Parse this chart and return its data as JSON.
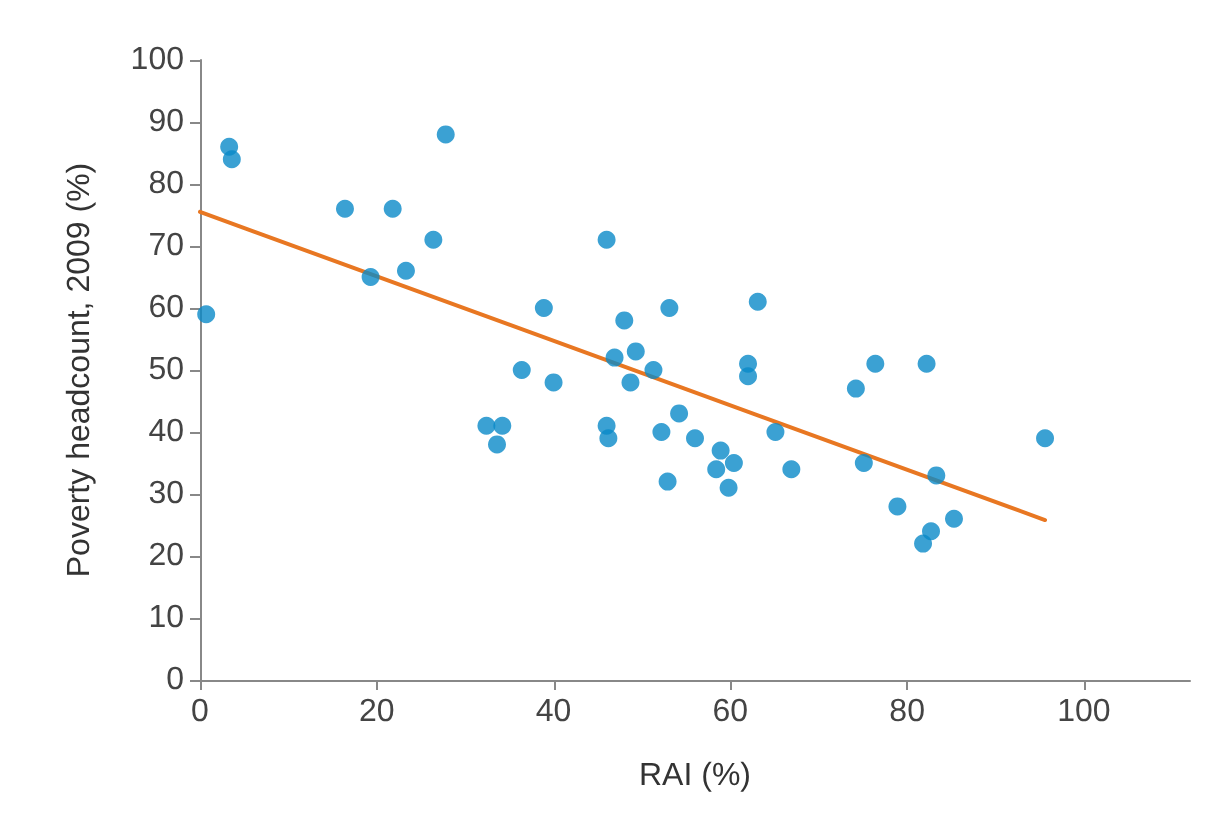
{
  "chart_data": {
    "type": "scatter",
    "xlabel": "RAI (%)",
    "ylabel": "Poverty headcount, 2009 (%)",
    "xlim": [
      0,
      112
    ],
    "xticks": [
      0,
      20,
      40,
      60,
      80,
      100
    ],
    "ylim": [
      0,
      100
    ],
    "yticks": [
      0,
      10,
      20,
      30,
      40,
      50,
      60,
      70,
      80,
      90,
      100
    ],
    "grid": false,
    "marker": "circle",
    "series": [
      {
        "color": "#0a8ac8",
        "x": [
          0.7,
          3.3,
          3.6,
          16.4,
          19.3,
          21.8,
          23.3,
          26.4,
          27.8,
          32.4,
          34.2,
          33.6,
          36.4,
          38.9,
          40,
          46,
          46,
          46.2,
          46.9,
          48,
          48.7,
          49.3,
          51.3,
          52.2,
          53.1,
          52.9,
          54.2,
          56,
          58.4,
          58.9,
          59.8,
          60.4,
          62,
          62,
          63.1,
          65.1,
          66.9,
          74.2,
          75.1,
          76.4,
          78.9,
          81.8,
          82.2,
          82.7,
          83.3,
          85.3,
          95.6
        ],
        "values": [
          59,
          86,
          84,
          76,
          65,
          76,
          66,
          71,
          88,
          41,
          41,
          38,
          50,
          60,
          48,
          71,
          41,
          39,
          52,
          58,
          48,
          53,
          50,
          40,
          60,
          32,
          43,
          39,
          34,
          37,
          31,
          35,
          51,
          49,
          61,
          40,
          34,
          47,
          35,
          51,
          28,
          22,
          51,
          24,
          33,
          26,
          39
        ]
      },
      {
        "type": "line",
        "color": "#e87722",
        "x": [
          0,
          95.6
        ],
        "values": [
          75.5,
          25.8
        ],
        "marker": "none",
        "line_style": "solid"
      }
    ]
  }
}
